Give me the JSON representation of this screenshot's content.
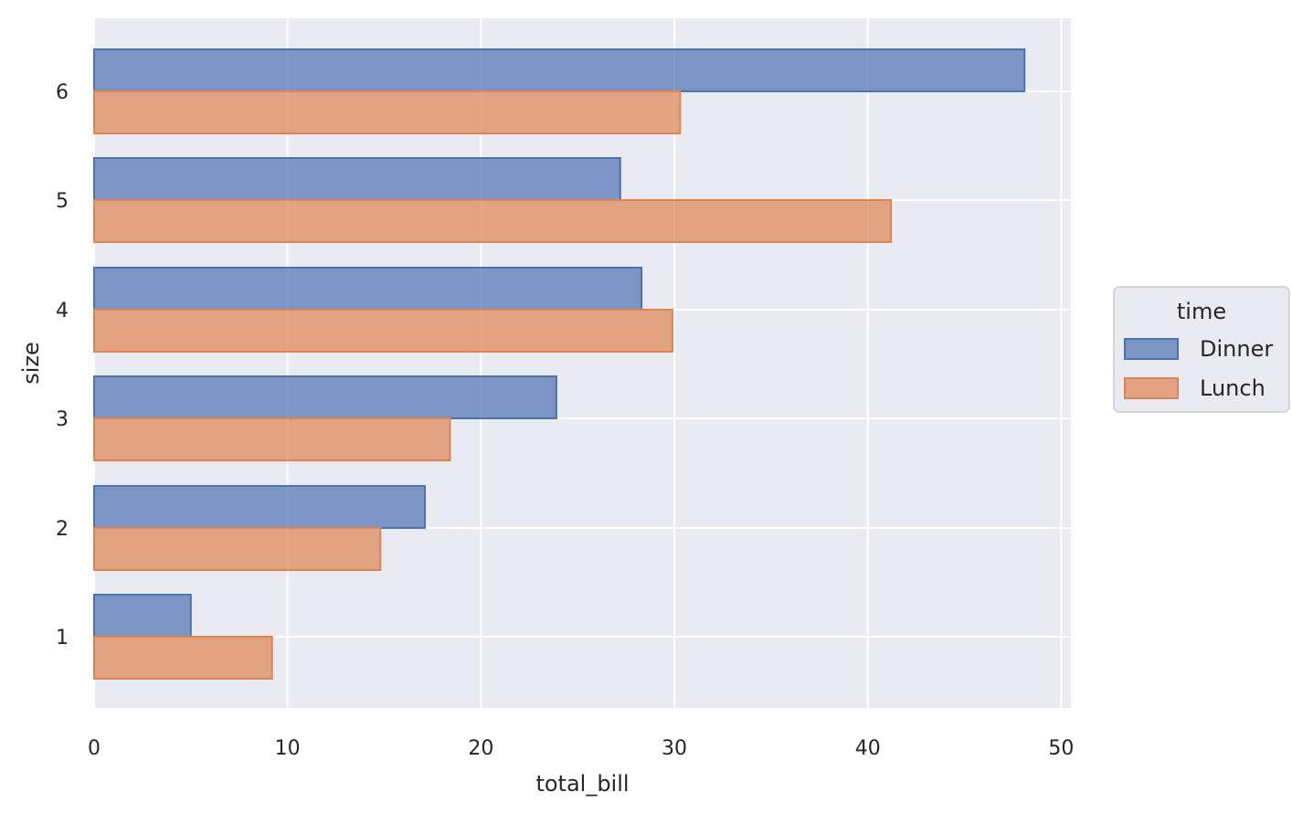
{
  "chart_data": {
    "type": "bar",
    "orientation": "horizontal",
    "categories": [
      "1",
      "2",
      "3",
      "4",
      "5",
      "6"
    ],
    "series": [
      {
        "name": "Dinner",
        "values": [
          5.0,
          17.1,
          23.9,
          28.3,
          27.2,
          48.1
        ],
        "fill": "#4c72b0",
        "stroke": "#4c72b0"
      },
      {
        "name": "Lunch",
        "values": [
          9.2,
          14.8,
          18.4,
          29.9,
          41.2,
          30.3
        ],
        "fill": "#dd8452",
        "stroke": "#dd8452"
      }
    ],
    "xticks": [
      "0",
      "10",
      "20",
      "30",
      "40",
      "50"
    ],
    "xlim": [
      0,
      50.5
    ],
    "xlabel": "total_bill",
    "ylabel": "size",
    "grid": true,
    "background": "#eaeaf2",
    "legend": {
      "title": "time",
      "placement": "right",
      "entries": [
        "Dinner",
        "Lunch"
      ]
    }
  }
}
